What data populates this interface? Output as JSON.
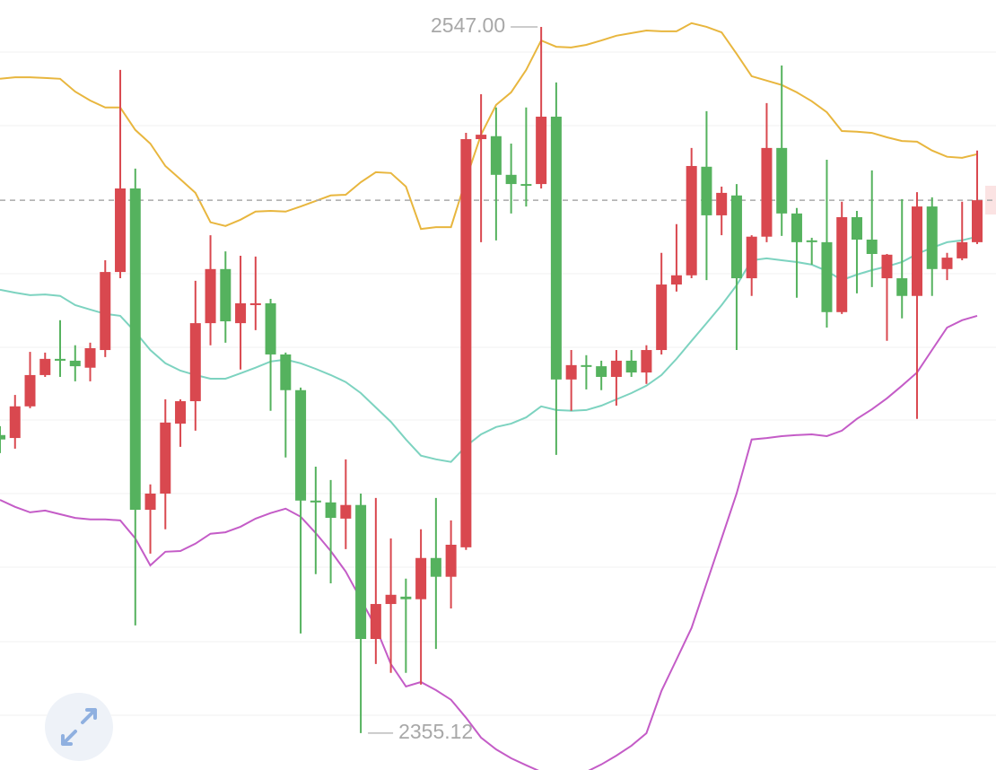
{
  "chart_data": {
    "type": "candlestick",
    "ylim": [
      2345.1,
      2554.3
    ],
    "up_color": "#d9484f",
    "down_color": "#55b25e",
    "open": [
      2436.1,
      2435.3,
      2443.9,
      2452.4,
      2456.8,
      2456.3,
      2454.4,
      2459.2,
      2480.4,
      2503.1,
      2415.8,
      2420.2,
      2439.2,
      2445.3,
      2466.5,
      2481.2,
      2466.5,
      2471.7,
      2471.9,
      2458.0,
      2448.3,
      2418.3,
      2417.8,
      2413.4,
      2417.1,
      2380.7,
      2390.2,
      2392.2,
      2391.5,
      2402.7,
      2397.6,
      2405.6,
      2516.5,
      2517.3,
      2506.8,
      2504.3,
      2504.3,
      2522.6,
      2451.2,
      2455.1,
      2454.8,
      2451.9,
      2456.3,
      2453.1,
      2459.2,
      2477.0,
      2479.5,
      2509.0,
      2495.8,
      2501.2,
      2478.7,
      2490.0,
      2514.1,
      2496.3,
      2489.0,
      2488.5,
      2469.5,
      2495.3,
      2489.2,
      2478.7,
      2478.7,
      2473.9,
      2498.2,
      2481.2,
      2484.1,
      2488.5
    ],
    "high": [
      2438.5,
      2447.0,
      2458.7,
      2458.5,
      2467.3,
      2460.5,
      2461.2,
      2483.6,
      2535.3,
      2508.5,
      2422.7,
      2445.8,
      2445.8,
      2478.0,
      2490.4,
      2486.0,
      2484.8,
      2484.6,
      2473.1,
      2458.5,
      2449.0,
      2427.5,
      2423.9,
      2429.5,
      2420.2,
      2419.0,
      2408.0,
      2397.1,
      2410.5,
      2419.0,
      2412.9,
      2518.2,
      2528.7,
      2525.1,
      2515.3,
      2525.1,
      2547,
      2531.9,
      2459.2,
      2457.8,
      2456.3,
      2459.2,
      2459.2,
      2460.5,
      2485.6,
      2493.4,
      2514.1,
      2524.1,
      2503.6,
      2504.3,
      2490.4,
      2526.3,
      2536.5,
      2497.8,
      2489.7,
      2510.9,
      2499.5,
      2497.0,
      2508.0,
      2485.3,
      2500.2,
      2502.1,
      2500.7,
      2485.6,
      2499.5,
      2513.4
    ],
    "low": [
      2431.2,
      2432.4,
      2443.4,
      2451.9,
      2451.9,
      2450.7,
      2450.7,
      2457.3,
      2478.7,
      2384.4,
      2403.9,
      2410.5,
      2432.9,
      2437.3,
      2460.5,
      2461.2,
      2453.9,
      2464.6,
      2442.7,
      2430.0,
      2382.2,
      2398.3,
      2395.8,
      2405.1,
      2355.12,
      2373.9,
      2371.5,
      2371.5,
      2368.3,
      2378.0,
      2389.0,
      2404.9,
      2488.5,
      2489.0,
      2496.3,
      2498.2,
      2503.1,
      2430.7,
      2442.7,
      2448.5,
      2448.3,
      2444.1,
      2451.9,
      2450.0,
      2458.0,
      2475.1,
      2478.7,
      2478.2,
      2490.4,
      2459.2,
      2473.9,
      2488.5,
      2490.2,
      2473.4,
      2482.4,
      2465.3,
      2469.0,
      2474.6,
      2476.3,
      2461.7,
      2467.8,
      2440.5,
      2473.9,
      2478.2,
      2483.6,
      2488.0
    ],
    "close": [
      2434.9,
      2443.9,
      2452.4,
      2456.8,
      2456.3,
      2454.8,
      2459.7,
      2480.4,
      2503.1,
      2415.8,
      2420.2,
      2439.5,
      2445.3,
      2466.5,
      2481.2,
      2467.0,
      2471.9,
      2471.9,
      2458.0,
      2448.3,
      2418.3,
      2417.8,
      2413.6,
      2417.1,
      2380.7,
      2390.2,
      2392.7,
      2391.5,
      2402.7,
      2397.6,
      2406.3,
      2516.5,
      2517.7,
      2506.8,
      2504.3,
      2504.1,
      2522.6,
      2451.2,
      2455.1,
      2454.8,
      2451.9,
      2456.3,
      2453.1,
      2459.2,
      2477.0,
      2479.5,
      2509.2,
      2495.8,
      2501.9,
      2478.7,
      2490.0,
      2514.1,
      2496.3,
      2488.5,
      2488.5,
      2469.5,
      2495.3,
      2489.2,
      2485.3,
      2485.1,
      2473.9,
      2498.2,
      2481.2,
      2484.3,
      2488.5,
      2499.9
    ],
    "bands": [
      {
        "color": "#e8b63e",
        "values": [
          2532.9,
          2533.3,
          2533.3,
          2533.1,
          2532.9,
          2529.4,
          2527.0,
          2525.1,
          2525.1,
          2519.0,
          2515.3,
          2509.2,
          2505.6,
          2501.9,
          2493.9,
          2492.9,
          2494.6,
          2496.8,
          2497.0,
          2496.8,
          2498.2,
          2499.7,
          2501.2,
          2501.4,
          2504.8,
          2507.5,
          2507.3,
          2503.6,
          2492.1,
          2492.6,
          2492.6,
          2505.6,
          2517.7,
          2525.8,
          2529.2,
          2535.3,
          2543.3,
          2541.6,
          2541.4,
          2542.1,
          2543.3,
          2544.6,
          2545.3,
          2546.0,
          2545.8,
          2545.8,
          2548.0,
          2547.0,
          2545.5,
          2539.7,
          2533.6,
          2532.4,
          2531.2,
          2529.2,
          2526.8,
          2523.8,
          2518.7,
          2518.5,
          2518.2,
          2517.0,
          2516.0,
          2515.8,
          2513.4,
          2511.7,
          2511.4,
          2512.4
        ]
      },
      {
        "color": "#7dd3c0",
        "values": [
          2475.6,
          2474.8,
          2474.1,
          2474.3,
          2473.9,
          2471.4,
          2470.2,
          2469.0,
          2468.5,
          2464.1,
          2459.2,
          2455.6,
          2453.6,
          2452.4,
          2451.4,
          2451.4,
          2452.9,
          2454.4,
          2456.1,
          2456.6,
          2455.6,
          2454.1,
          2452.4,
          2450.5,
          2447.5,
          2443.6,
          2439.7,
          2434.9,
          2430.5,
          2429.5,
          2428.8,
          2433.1,
          2436.3,
          2438.3,
          2439.2,
          2440.9,
          2443.9,
          2442.9,
          2442.7,
          2442.9,
          2444.1,
          2445.8,
          2447.5,
          2449.5,
          2452.4,
          2456.8,
          2461.7,
          2466.5,
          2471.4,
          2476.8,
          2483.6,
          2484.1,
          2483.6,
          2483.1,
          2482.4,
          2480.7,
          2478.2,
          2479.7,
          2480.9,
          2481.9,
          2483.1,
          2485.3,
          2487.0,
          2488.5,
          2489.0,
          2490.0
        ]
      },
      {
        "color": "#c45cc7",
        "values": [
          2418.5,
          2416.6,
          2415.1,
          2415.6,
          2414.6,
          2413.6,
          2413.2,
          2413.2,
          2412.9,
          2408.0,
          2400.7,
          2404.4,
          2404.6,
          2406.6,
          2409.3,
          2409.7,
          2411.2,
          2413.4,
          2414.9,
          2416.1,
          2413.9,
          2409.5,
          2404.6,
          2399.0,
          2391.5,
          2383.9,
          2373.9,
          2367.8,
          2369.0,
          2366.8,
          2364.2,
          2359.3,
          2353.9,
          2350.7,
          2348.3,
          2346.4,
          2344.6,
          2342.2,
          2342.7,
          2344.6,
          2346.6,
          2349.0,
          2351.7,
          2355.1,
          2366.6,
          2375.1,
          2383.7,
          2395.8,
          2408.0,
          2420.2,
          2434.9,
          2435.3,
          2435.8,
          2436.1,
          2436.3,
          2435.8,
          2437.3,
          2440.5,
          2443.1,
          2446.1,
          2449.5,
          2453.1,
          2459.2,
          2465.3,
          2467.3,
          2468.5
        ]
      }
    ],
    "annotations": [
      "2547.00",
      "2355.12"
    ]
  }
}
